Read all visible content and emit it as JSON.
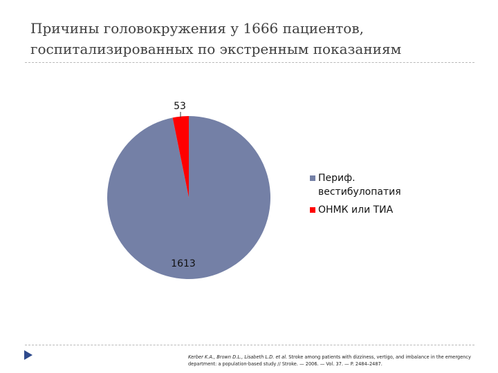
{
  "slide": {
    "title_line1": "Причины головокружения у 1666 пациентов,",
    "title_line2": "госпитализированных по экстренным показаниям"
  },
  "chart_data": {
    "type": "pie",
    "slices": [
      {
        "label": "Периф. вестибулопатия",
        "value": 1613,
        "color": "#7480a6"
      },
      {
        "label": "ОНМК или ТИА",
        "value": 53,
        "color": "#ff0000"
      }
    ],
    "data_labels": [
      "1613",
      "53"
    ],
    "legend_position": "right"
  },
  "legend": {
    "item1_line1": "Периф.",
    "item1_line2": "вестибулопатия",
    "item2": "ОНМК или ТИА"
  },
  "footnote": {
    "authors": "Kerber K.A., Brown D.L., Lisabeth L.D. et al.",
    "text": " Stroke among patients with dizziness, vertigo, and imbalance in the emergency department: a population-based study // Stroke. — 2006. — Vol. 37. — P. 2484–2487."
  },
  "colors": {
    "accent": "#2e4a8c",
    "rule": "#b8b8b8"
  },
  "icons": {
    "nav": "triangle-play-icon"
  }
}
